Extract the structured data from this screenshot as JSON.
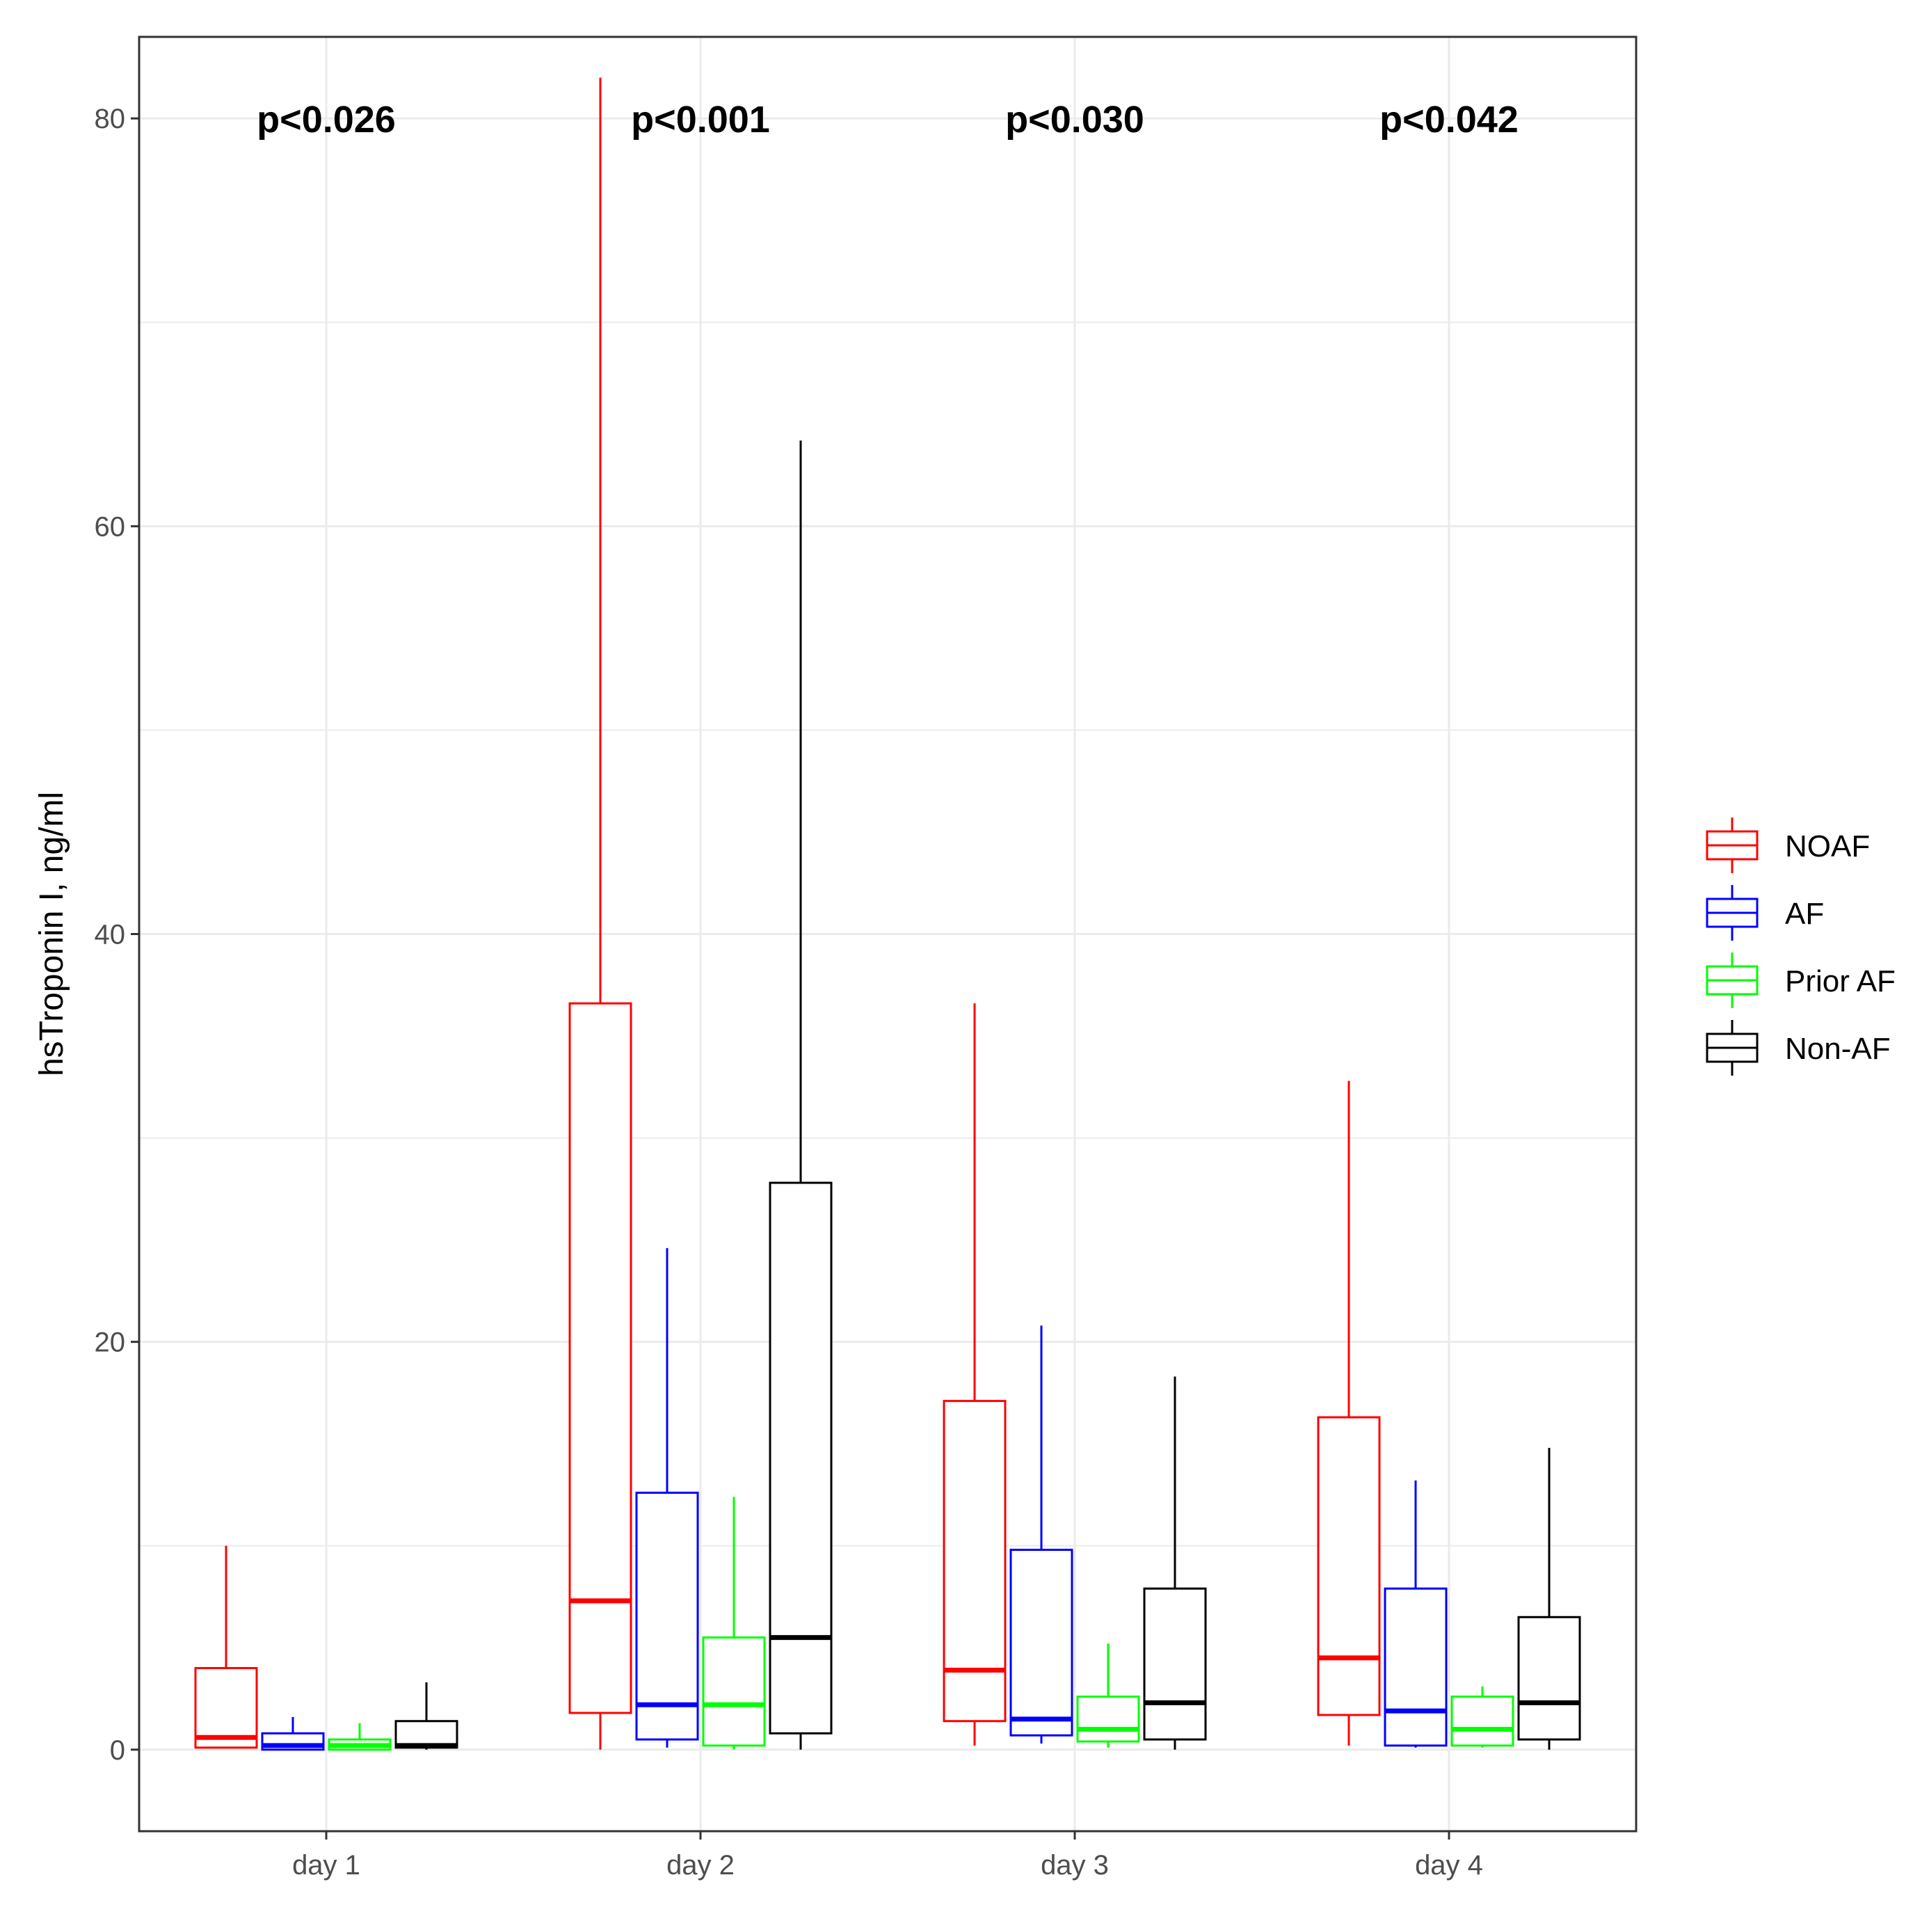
{
  "chart_data": {
    "type": "boxplot",
    "xlabel": "",
    "ylabel": "hsTroponin I, ng/ml",
    "ylim": [
      -4,
      84
    ],
    "yticks": [
      0,
      20,
      40,
      60,
      80
    ],
    "grid": true,
    "legend_position": "right",
    "categories": [
      "day 1",
      "day 2",
      "day 3",
      "day 4"
    ],
    "annotations": [
      "p<0.026",
      "p<0.001",
      "p<0.030",
      "p<0.042"
    ],
    "series": [
      {
        "name": "NOAF",
        "color": "#ff0000",
        "boxes": [
          {
            "min": 0.1,
            "q1": 0.1,
            "median": 0.6,
            "q3": 4.0,
            "max": 10.0
          },
          {
            "min": 0.0,
            "q1": 1.8,
            "median": 7.3,
            "q3": 36.6,
            "max": 82.0
          },
          {
            "min": 0.2,
            "q1": 1.4,
            "median": 3.9,
            "q3": 17.1,
            "max": 36.6
          },
          {
            "min": 0.2,
            "q1": 1.7,
            "median": 4.5,
            "q3": 16.3,
            "max": 32.8
          }
        ]
      },
      {
        "name": "AF",
        "color": "#0000ff",
        "boxes": [
          {
            "min": 0.0,
            "q1": 0.0,
            "median": 0.2,
            "q3": 0.8,
            "max": 1.6
          },
          {
            "min": 0.1,
            "q1": 0.5,
            "median": 2.2,
            "q3": 12.6,
            "max": 24.6
          },
          {
            "min": 0.3,
            "q1": 0.7,
            "median": 1.5,
            "q3": 9.8,
            "max": 20.8
          },
          {
            "min": 0.1,
            "q1": 0.2,
            "median": 1.9,
            "q3": 7.9,
            "max": 13.2
          }
        ]
      },
      {
        "name": "Prior AF",
        "color": "#00ff00",
        "boxes": [
          {
            "min": 0.0,
            "q1": 0.0,
            "median": 0.2,
            "q3": 0.5,
            "max": 1.3
          },
          {
            "min": 0.0,
            "q1": 0.2,
            "median": 2.2,
            "q3": 5.5,
            "max": 12.4
          },
          {
            "min": 0.1,
            "q1": 0.4,
            "median": 1.0,
            "q3": 2.6,
            "max": 5.2
          },
          {
            "min": 0.1,
            "q1": 0.2,
            "median": 1.0,
            "q3": 2.6,
            "max": 3.1
          }
        ]
      },
      {
        "name": "Non-AF",
        "color": "#000000",
        "boxes": [
          {
            "min": 0.0,
            "q1": 0.1,
            "median": 0.2,
            "q3": 1.4,
            "max": 3.3
          },
          {
            "min": 0.0,
            "q1": 0.8,
            "median": 5.5,
            "q3": 27.8,
            "max": 64.2
          },
          {
            "min": 0.0,
            "q1": 0.5,
            "median": 2.3,
            "q3": 7.9,
            "max": 18.3
          },
          {
            "min": 0.0,
            "q1": 0.5,
            "median": 2.3,
            "q3": 6.5,
            "max": 14.8
          }
        ]
      }
    ]
  }
}
